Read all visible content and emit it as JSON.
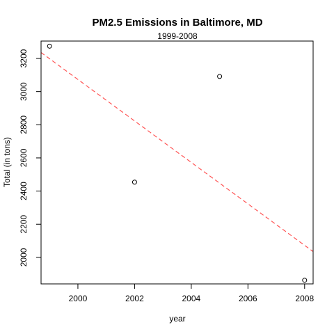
{
  "chart_data": {
    "type": "scatter",
    "title": "PM2.5 Emissions in Baltimore, MD",
    "subtitle": "1999-2008",
    "xlabel": "year",
    "ylabel": "Total (in tons)",
    "xlim": [
      1998.7,
      2008.3
    ],
    "ylim": [
      1840,
      3305
    ],
    "xticks": [
      2000,
      2002,
      2004,
      2006,
      2008
    ],
    "yticks": [
      2000,
      2200,
      2400,
      2600,
      2800,
      3000,
      3200
    ],
    "grid": false,
    "legend": "none",
    "series": [
      {
        "x": [
          1999,
          2002,
          2005,
          2008
        ],
        "y": [
          3274.2,
          2453.9,
          3091.4,
          1862.3
        ],
        "marker": "open-circle",
        "color": "#000000"
      }
    ],
    "trendline": {
      "style": "dashed",
      "color": "#ff5555",
      "intercept_at_1999": 3198.4,
      "slope_per_year": -125.1
    }
  }
}
